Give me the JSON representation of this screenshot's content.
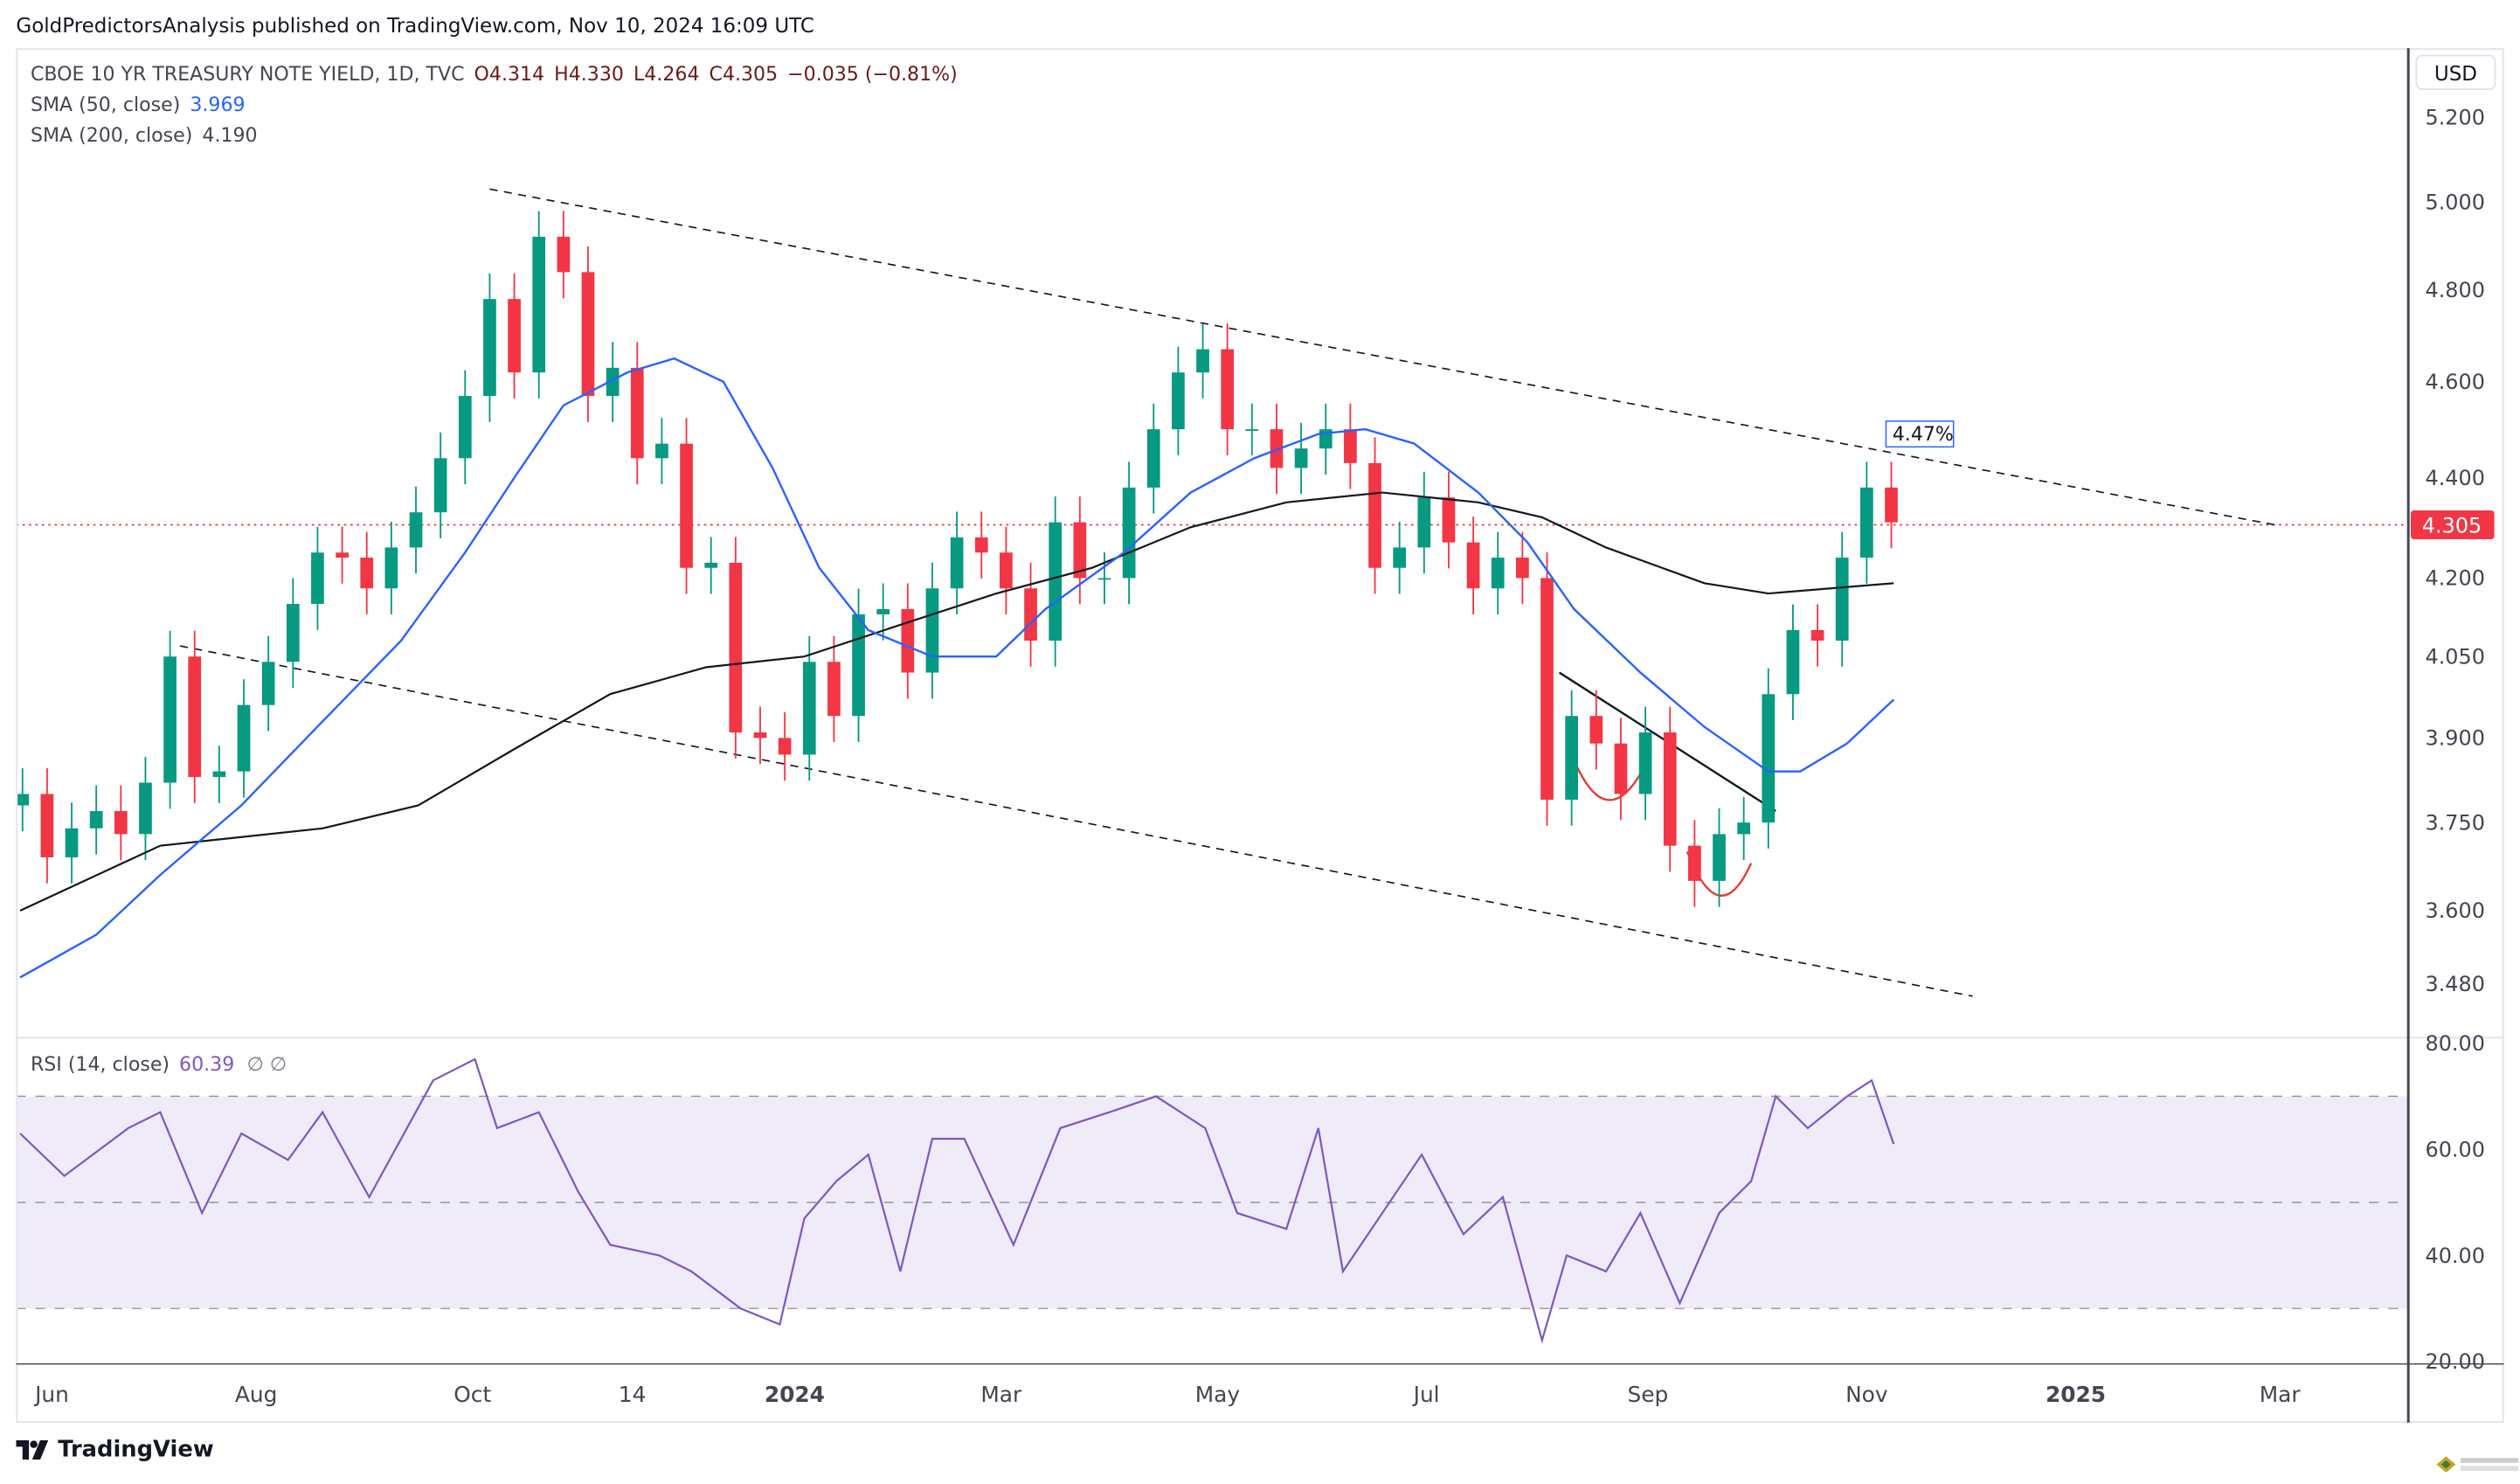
{
  "header": {
    "published": "GoldPredictorsAnalysis published on TradingView.com, Nov 10, 2024 16:09 UTC"
  },
  "legend": {
    "symbol": "CBOE 10 YR TREASURY NOTE YIELD, 1D, TVC",
    "open": "O4.314",
    "high": "H4.330",
    "low": "L4.264",
    "close": "C4.305",
    "change": "−0.035 (−0.81%)",
    "sma50_label": "SMA (50, close)",
    "sma50_value": "3.969",
    "sma200_label": "SMA (200, close)",
    "sma200_value": "4.190",
    "rsi_label": "RSI (14, close)",
    "rsi_value": "60.39",
    "rsi_extra": "∅ ∅"
  },
  "price_axis": {
    "currency": "USD",
    "last_price": "4.305",
    "ticks": [
      "5.200",
      "5.000",
      "4.800",
      "4.600",
      "4.400",
      "4.200",
      "4.050",
      "3.900",
      "3.750",
      "3.600",
      "3.480"
    ],
    "rsi_ticks": [
      "80.00",
      "60.00",
      "40.00",
      "20.00"
    ]
  },
  "footer": {
    "brand": "TradingView"
  },
  "colors": {
    "up": "#089981",
    "down": "#f23645",
    "sma50": "#2962ff",
    "sma200": "#131722",
    "rsi": "#7e57c2",
    "rsi_band": "#efebf8",
    "last": "#f23645"
  },
  "chart_data": {
    "type": "candlestick",
    "title": "CBOE 10 YR TREASURY NOTE YIELD, 1D, TVC",
    "scale": "log",
    "ylim": [
      3.4,
      5.35
    ],
    "x_unit": "week index (weekly approximation of daily bars)",
    "xlim": [
      0,
      98
    ],
    "x_ticks": [
      {
        "label": "Jun",
        "x": 2.2
      },
      {
        "label": "Aug",
        "x": 10.5
      },
      {
        "label": "Oct",
        "x": 19.3
      },
      {
        "label": "14",
        "x": 25.8
      },
      {
        "label": "2024",
        "x": 32.4
      },
      {
        "label": "Mar",
        "x": 40.8
      },
      {
        "label": "May",
        "x": 49.6
      },
      {
        "label": "Jul",
        "x": 58.1
      },
      {
        "label": "Sep",
        "x": 67.1
      },
      {
        "label": "Nov",
        "x": 76.0
      },
      {
        "label": "2025",
        "x": 84.5
      },
      {
        "label": "Mar",
        "x": 92.8
      }
    ],
    "y_ticks": [
      5.2,
      5.0,
      4.8,
      4.6,
      4.4,
      4.2,
      4.05,
      3.9,
      3.75,
      3.6,
      3.48
    ],
    "first_open": 3.78,
    "closes": [
      3.8,
      3.69,
      3.74,
      3.77,
      3.73,
      3.82,
      4.05,
      3.83,
      3.84,
      3.96,
      4.04,
      4.15,
      4.25,
      4.24,
      4.18,
      4.26,
      4.33,
      4.44,
      4.57,
      4.78,
      4.62,
      4.92,
      4.84,
      4.57,
      4.63,
      4.44,
      4.47,
      4.22,
      4.23,
      3.91,
      3.9,
      3.87,
      4.04,
      3.94,
      4.13,
      4.14,
      4.02,
      4.18,
      4.28,
      4.25,
      4.18,
      4.08,
      4.31,
      4.2,
      4.2,
      4.38,
      4.5,
      4.62,
      4.67,
      4.5,
      4.5,
      4.42,
      4.46,
      4.5,
      4.43,
      4.22,
      4.26,
      4.36,
      4.27,
      4.18,
      4.24,
      4.2,
      3.79,
      3.94,
      3.89,
      3.8,
      3.91,
      3.71,
      3.65,
      3.73,
      3.75,
      3.98,
      4.1,
      4.08,
      4.24,
      4.38,
      4.31
    ],
    "last_price": 4.305,
    "sma50": [
      [
        0.9,
        3.49
      ],
      [
        4.0,
        3.56
      ],
      [
        6.6,
        3.66
      ],
      [
        9.9,
        3.78
      ],
      [
        13.2,
        3.93
      ],
      [
        16.4,
        4.08
      ],
      [
        19.0,
        4.25
      ],
      [
        21.0,
        4.4
      ],
      [
        23.0,
        4.55
      ],
      [
        25.6,
        4.62
      ],
      [
        27.5,
        4.65
      ],
      [
        29.5,
        4.6
      ],
      [
        31.5,
        4.42
      ],
      [
        33.4,
        4.22
      ],
      [
        35.4,
        4.1
      ],
      [
        38.0,
        4.05
      ],
      [
        40.6,
        4.05
      ],
      [
        42.6,
        4.14
      ],
      [
        45.8,
        4.25
      ],
      [
        48.5,
        4.37
      ],
      [
        51.1,
        4.44
      ],
      [
        53.7,
        4.49
      ],
      [
        55.6,
        4.5
      ],
      [
        57.6,
        4.47
      ],
      [
        60.2,
        4.37
      ],
      [
        62.2,
        4.27
      ],
      [
        64.1,
        4.14
      ],
      [
        66.8,
        4.02
      ],
      [
        69.4,
        3.92
      ],
      [
        72.0,
        3.84
      ],
      [
        73.3,
        3.84
      ],
      [
        75.2,
        3.89
      ],
      [
        77.1,
        3.97
      ]
    ],
    "sma200": [
      [
        0.9,
        3.6
      ],
      [
        6.6,
        3.71
      ],
      [
        13.2,
        3.74
      ],
      [
        17.1,
        3.78
      ],
      [
        21.0,
        3.88
      ],
      [
        24.9,
        3.98
      ],
      [
        28.8,
        4.03
      ],
      [
        32.8,
        4.05
      ],
      [
        36.7,
        4.11
      ],
      [
        40.6,
        4.17
      ],
      [
        44.5,
        4.22
      ],
      [
        48.5,
        4.3
      ],
      [
        52.4,
        4.35
      ],
      [
        56.3,
        4.37
      ],
      [
        60.2,
        4.35
      ],
      [
        62.8,
        4.32
      ],
      [
        65.4,
        4.26
      ],
      [
        69.4,
        4.19
      ],
      [
        72.0,
        4.17
      ],
      [
        77.1,
        4.19
      ]
    ],
    "annotations": {
      "upper_channel": [
        [
          20.0,
          5.03
        ],
        [
          92.6,
          4.305
        ]
      ],
      "lower_channel": [
        [
          7.4,
          4.07
        ],
        [
          80.3,
          3.46
        ]
      ],
      "neckline": [
        [
          63.5,
          4.02
        ],
        [
          72.3,
          3.77
        ]
      ],
      "cups": [
        [
          [
            64.1,
            3.86
          ],
          [
            65.5,
            3.77
          ],
          [
            67.1,
            3.86
          ]
        ],
        [
          [
            68.7,
            3.7
          ],
          [
            70.0,
            3.61
          ],
          [
            71.3,
            3.68
          ]
        ]
      ],
      "label": {
        "text": "4.47%",
        "x": 76.0,
        "y": 4.47
      }
    },
    "rsi": {
      "levels": [
        70,
        50,
        30
      ],
      "ylim": [
        20,
        80
      ],
      "values": [
        [
          0.9,
          63
        ],
        [
          2.7,
          55
        ],
        [
          5.3,
          64
        ],
        [
          6.6,
          67
        ],
        [
          8.3,
          48
        ],
        [
          9.9,
          63
        ],
        [
          11.8,
          58
        ],
        [
          13.2,
          67
        ],
        [
          15.1,
          51
        ],
        [
          17.7,
          73
        ],
        [
          19.4,
          77
        ],
        [
          20.3,
          64
        ],
        [
          22.0,
          67
        ],
        [
          23.6,
          52
        ],
        [
          24.9,
          42
        ],
        [
          26.9,
          40
        ],
        [
          28.2,
          37
        ],
        [
          30.2,
          30
        ],
        [
          31.8,
          27
        ],
        [
          32.8,
          47
        ],
        [
          34.1,
          54
        ],
        [
          35.4,
          59
        ],
        [
          36.7,
          37
        ],
        [
          38.0,
          62
        ],
        [
          39.3,
          62
        ],
        [
          41.3,
          42
        ],
        [
          43.2,
          64
        ],
        [
          45.2,
          67
        ],
        [
          47.1,
          70
        ],
        [
          49.1,
          64
        ],
        [
          50.4,
          48
        ],
        [
          52.4,
          45
        ],
        [
          53.7,
          64
        ],
        [
          54.7,
          37
        ],
        [
          56.3,
          48
        ],
        [
          57.9,
          59
        ],
        [
          59.6,
          44
        ],
        [
          61.2,
          51
        ],
        [
          62.8,
          24
        ],
        [
          63.8,
          40
        ],
        [
          65.4,
          37
        ],
        [
          66.8,
          48
        ],
        [
          68.4,
          31
        ],
        [
          70.0,
          48
        ],
        [
          71.3,
          54
        ],
        [
          72.3,
          70
        ],
        [
          73.6,
          64
        ],
        [
          75.2,
          70
        ],
        [
          76.2,
          73
        ],
        [
          77.1,
          61
        ]
      ]
    }
  }
}
